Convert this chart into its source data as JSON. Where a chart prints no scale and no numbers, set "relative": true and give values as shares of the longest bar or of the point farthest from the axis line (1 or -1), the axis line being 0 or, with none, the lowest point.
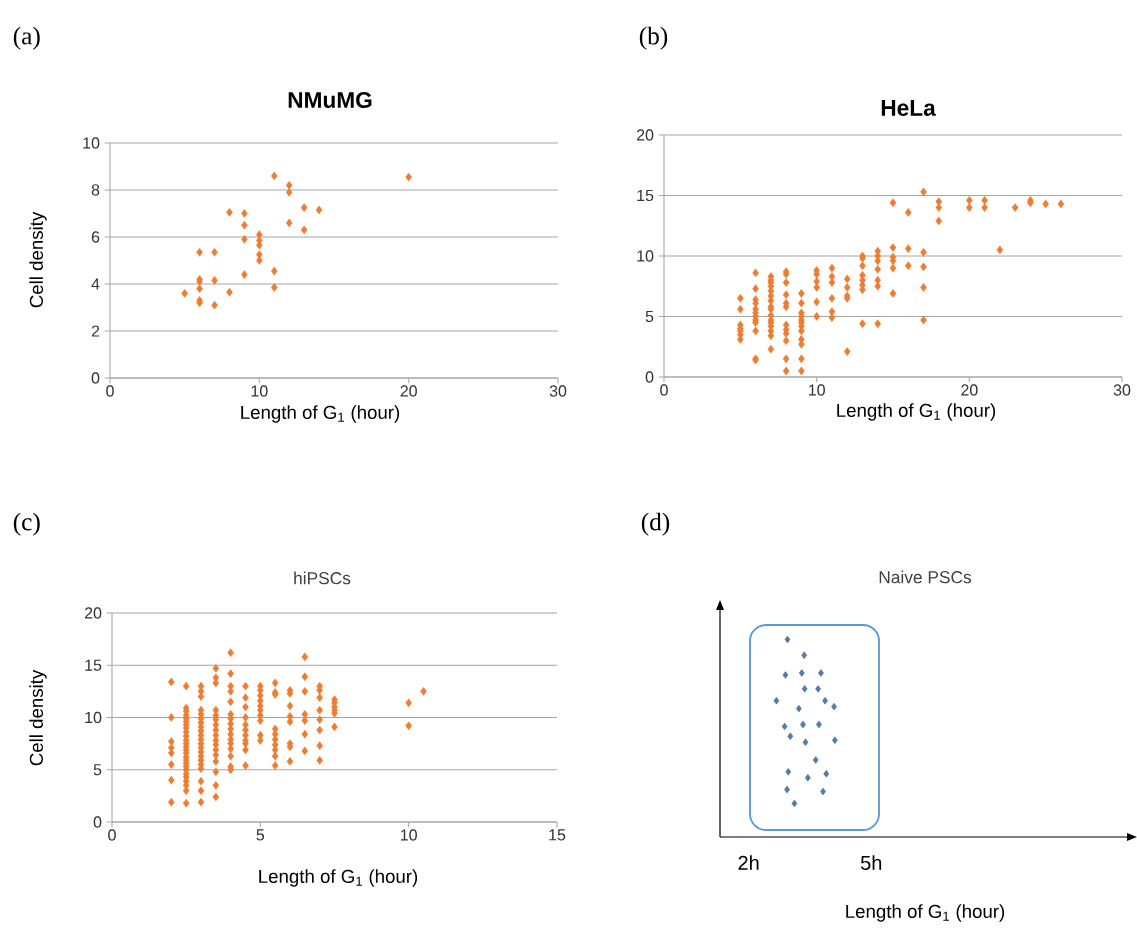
{
  "chart_data": [
    {
      "type": "scatter",
      "title": "NMuMG",
      "xlabel": "Length of G$_{1}$ (hour)",
      "ylabel": "Cell density",
      "annotations": [
        "(a)"
      ],
      "color": "#ed7d31",
      "marker": "diamond",
      "grid": "y",
      "xlim": [
        0,
        30
      ],
      "xticks": [
        0,
        10,
        20,
        30
      ],
      "ylim": [
        0,
        10
      ],
      "yticks": [
        0,
        2,
        4,
        6,
        8,
        10
      ],
      "x": [
        11,
        20,
        12,
        12,
        13,
        14,
        8,
        9,
        9,
        12,
        13,
        9,
        10,
        10,
        10,
        6,
        7,
        10,
        10,
        11,
        9,
        6,
        6,
        7,
        5,
        8,
        11,
        6,
        6,
        6,
        7
      ],
      "values": [
        8.6,
        8.55,
        8.2,
        7.9,
        7.25,
        7.15,
        7.05,
        7.0,
        6.5,
        6.6,
        6.3,
        5.9,
        6.1,
        5.85,
        5.65,
        5.35,
        5.35,
        5.25,
        5.0,
        4.55,
        4.4,
        4.2,
        4.1,
        4.15,
        3.6,
        3.65,
        3.85,
        3.8,
        3.3,
        3.2,
        3.1
      ]
    },
    {
      "type": "scatter",
      "title": "HeLa",
      "xlabel": "Length of G$_{1}$ (hour)",
      "annotations": [
        "(b)"
      ],
      "color": "#ed7d31",
      "marker": "diamond",
      "grid": "y",
      "xlim": [
        0,
        30
      ],
      "xticks": [
        0,
        10,
        20,
        30
      ],
      "ylim": [
        0,
        20
      ],
      "yticks": [
        0,
        5,
        10,
        15,
        20
      ],
      "x": [
        5,
        5,
        5,
        5,
        5,
        5,
        5,
        6,
        6,
        6,
        6,
        6,
        6,
        6,
        6,
        6,
        6,
        6,
        6,
        7,
        7,
        7,
        7,
        7,
        7,
        7,
        7,
        7,
        7,
        7,
        7,
        7,
        7,
        7,
        7,
        8,
        8,
        8,
        8,
        8,
        8,
        8,
        8,
        8,
        8,
        8,
        8,
        9,
        9,
        9,
        9,
        9,
        9,
        9,
        9,
        9,
        9,
        9,
        9,
        10,
        10,
        10,
        10,
        10,
        10,
        11,
        11,
        11,
        11,
        11,
        11,
        12,
        12,
        12,
        12,
        12,
        13,
        13,
        13,
        13,
        13,
        13,
        13,
        13,
        14,
        14,
        14,
        14,
        14,
        14,
        14,
        15,
        15,
        15,
        15,
        15,
        15,
        16,
        16,
        16,
        17,
        17,
        17,
        17,
        17,
        18,
        18,
        18,
        20,
        20,
        21,
        21,
        22,
        23,
        24,
        24,
        25,
        26
      ],
      "values": [
        6.5,
        5.6,
        4.3,
        4.0,
        3.8,
        3.5,
        3.1,
        8.6,
        7.3,
        6.4,
        6.1,
        5.6,
        5.3,
        5.0,
        4.7,
        4.5,
        3.8,
        1.5,
        1.4,
        8.3,
        8.0,
        7.8,
        7.5,
        7.1,
        6.7,
        6.3,
        5.8,
        5.6,
        5.1,
        4.7,
        4.5,
        4.2,
        3.8,
        3.4,
        2.3,
        8.7,
        8.5,
        7.8,
        6.8,
        6.1,
        5.8,
        4.3,
        3.9,
        3.6,
        3.0,
        1.5,
        0.5,
        6.9,
        6.1,
        5.3,
        5.0,
        4.7,
        4.5,
        4.2,
        3.8,
        3.1,
        2.7,
        1.5,
        0.5,
        8.8,
        8.5,
        7.9,
        7.4,
        6.2,
        5.0,
        9.0,
        8.3,
        7.8,
        6.5,
        5.4,
        4.9,
        8.1,
        7.4,
        6.7,
        6.5,
        2.1,
        10.0,
        9.8,
        9.2,
        8.4,
        8.0,
        7.6,
        7.2,
        4.4,
        10.4,
        10.0,
        9.6,
        8.9,
        8.0,
        7.5,
        4.4,
        14.4,
        10.7,
        9.9,
        9.6,
        9.0,
        6.9,
        13.6,
        10.6,
        9.2,
        15.3,
        10.3,
        9.1,
        7.4,
        4.7,
        14.5,
        14.0,
        12.9,
        14.6,
        14.0,
        14.6,
        14.0,
        10.5,
        14.0,
        14.6,
        14.4,
        14.3,
        14.3
      ]
    },
    {
      "type": "scatter",
      "title": "hiPSCs",
      "xlabel": "Length of G$_{1}$ (hour)",
      "ylabel": "Cell density",
      "annotations": [
        "(c)"
      ],
      "color": "#ed7d31",
      "marker": "diamond",
      "grid": "y",
      "xlim": [
        0,
        15
      ],
      "xticks": [
        0,
        5,
        10,
        15
      ],
      "ylim": [
        0,
        20
      ],
      "yticks": [
        0,
        5,
        10,
        15,
        20
      ],
      "x": [
        2,
        2,
        2,
        2,
        2,
        2,
        2,
        2,
        2.5,
        2.5,
        2.5,
        2.5,
        2.5,
        2.5,
        2.5,
        2.5,
        2.5,
        2.5,
        2.5,
        2.5,
        2.5,
        2.5,
        2.5,
        2.5,
        2.5,
        2.5,
        2.5,
        2.5,
        2.5,
        2.5,
        2.5,
        2.5,
        2.5,
        2.5,
        3,
        3,
        3,
        3,
        3,
        3,
        3,
        3,
        3,
        3,
        3,
        3,
        3,
        3,
        3,
        3,
        3,
        3,
        3,
        3,
        3,
        3.5,
        3.5,
        3.5,
        3.5,
        3.5,
        3.5,
        3.5,
        3.5,
        3.5,
        3.5,
        3.5,
        3.5,
        3.5,
        3.5,
        3.5,
        3.5,
        3.5,
        4,
        4,
        4,
        4,
        4,
        4,
        4,
        4,
        4,
        4,
        4,
        4,
        4,
        4,
        4,
        4,
        4.5,
        4.5,
        4.5,
        4.5,
        4.5,
        4.5,
        4.5,
        4.5,
        4.5,
        4.5,
        4.5,
        5,
        5,
        5,
        5,
        5,
        5,
        5,
        5,
        5,
        5,
        5.5,
        5.5,
        5.5,
        5.5,
        5.5,
        5.5,
        5.5,
        5.5,
        5.5,
        5.5,
        6,
        6,
        6,
        6,
        6,
        6,
        6,
        6,
        6.5,
        6.5,
        6.5,
        6.5,
        6.5,
        6.5,
        6.5,
        7,
        7,
        7,
        7,
        7,
        7,
        7,
        7,
        7.5,
        7.5,
        7.5,
        7.5,
        7.5,
        7.5,
        10,
        10,
        10.5
      ],
      "values": [
        13.4,
        10.0,
        7.7,
        7.1,
        6.6,
        5.5,
        4.0,
        1.9,
        13.0,
        10.9,
        10.6,
        10.2,
        9.9,
        9.6,
        9.3,
        9.0,
        8.6,
        8.2,
        7.8,
        7.5,
        7.2,
        6.9,
        6.6,
        6.2,
        5.9,
        5.6,
        5.3,
        5.0,
        4.6,
        4.3,
        3.9,
        3.5,
        3.0,
        1.8,
        13.0,
        12.5,
        12.0,
        10.7,
        10.3,
        9.9,
        9.5,
        9.1,
        8.7,
        8.3,
        7.9,
        7.5,
        7.1,
        6.7,
        6.3,
        5.9,
        5.5,
        5.1,
        3.9,
        3.0,
        1.9,
        14.7,
        13.8,
        13.3,
        10.7,
        10.2,
        9.8,
        9.3,
        8.8,
        8.3,
        7.8,
        7.4,
        6.9,
        6.4,
        5.8,
        4.8,
        3.5,
        2.4,
        16.2,
        14.2,
        13.0,
        12.5,
        11.5,
        10.3,
        9.9,
        9.4,
        8.9,
        8.4,
        7.9,
        7.5,
        7.0,
        6.3,
        5.3,
        5.0,
        13.0,
        11.9,
        11.0,
        10.0,
        9.3,
        8.8,
        8.3,
        7.8,
        7.5,
        6.9,
        5.4,
        13.0,
        12.6,
        12.1,
        11.6,
        11.1,
        10.7,
        10.2,
        9.7,
        8.3,
        7.8,
        13.3,
        12.4,
        12.2,
        8.9,
        8.4,
        7.9,
        7.4,
        6.9,
        6.3,
        5.4,
        12.6,
        12.3,
        11.1,
        10.1,
        9.6,
        7.5,
        7.2,
        5.8,
        15.8,
        13.9,
        12.5,
        10.3,
        9.7,
        8.4,
        6.8,
        13.0,
        12.6,
        11.9,
        10.7,
        9.8,
        8.8,
        7.3,
        5.9,
        11.7,
        11.4,
        11.0,
        10.7,
        10.4,
        9.1,
        11.4,
        9.2,
        12.5
      ]
    },
    {
      "type": "scatter",
      "title": "Naive PSCs",
      "xlabel": "Length of G$_{1}$ (hour)",
      "annotations": [
        "(d)"
      ],
      "color": "#4a7fb5",
      "marker": "diamond",
      "relative": true,
      "xlim": [
        1.3,
        11.5
      ],
      "xticks": [
        {
          "value": 2,
          "label": "2h"
        },
        {
          "value": 5,
          "label": "5h"
        }
      ],
      "x": [
        2.95,
        3.36,
        2.9,
        3.3,
        3.77,
        3.37,
        3.7,
        2.68,
        3.87,
        4.09,
        3.23,
        2.88,
        3.33,
        3.72,
        3.02,
        3.39,
        4.11,
        3.64,
        2.97,
        3.45,
        3.9,
        2.94,
        3.82,
        3.12
      ],
      "values": [
        1.0,
        0.92,
        0.82,
        0.83,
        0.83,
        0.75,
        0.75,
        0.69,
        0.69,
        0.66,
        0.65,
        0.56,
        0.57,
        0.57,
        0.51,
        0.48,
        0.49,
        0.39,
        0.33,
        0.3,
        0.32,
        0.24,
        0.23,
        0.17
      ]
    }
  ]
}
